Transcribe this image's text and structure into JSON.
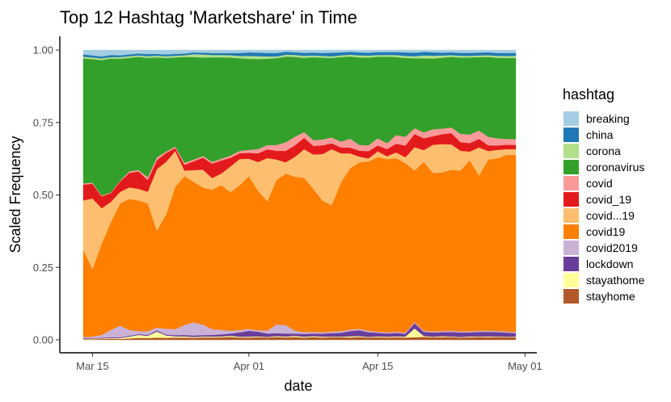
{
  "chart_data": {
    "type": "area",
    "stacked": true,
    "normalized": true,
    "title": "Top 12 Hashtag 'Marketshare' in Time",
    "xlabel": "date",
    "ylabel": "Scaled Frequency",
    "x_ticks": [
      "Mar 15",
      "Apr 01",
      "Apr 15",
      "May 01"
    ],
    "y_ticks": [
      "0.00",
      "0.25",
      "0.50",
      "0.75",
      "1.00"
    ],
    "xlim": [
      "2020-03-14",
      "2020-04-30"
    ],
    "ylim": [
      0,
      1
    ],
    "grid": false,
    "legend_title": "hashtag",
    "legend_position": "right",
    "x": [
      "2020-03-14",
      "2020-03-15",
      "2020-03-16",
      "2020-03-17",
      "2020-03-18",
      "2020-03-19",
      "2020-03-20",
      "2020-03-21",
      "2020-03-22",
      "2020-03-23",
      "2020-03-24",
      "2020-03-25",
      "2020-03-26",
      "2020-03-27",
      "2020-03-28",
      "2020-03-29",
      "2020-03-30",
      "2020-03-31",
      "2020-04-01",
      "2020-04-02",
      "2020-04-03",
      "2020-04-04",
      "2020-04-05",
      "2020-04-06",
      "2020-04-07",
      "2020-04-08",
      "2020-04-09",
      "2020-04-10",
      "2020-04-11",
      "2020-04-12",
      "2020-04-13",
      "2020-04-14",
      "2020-04-15",
      "2020-04-16",
      "2020-04-17",
      "2020-04-18",
      "2020-04-19",
      "2020-04-20",
      "2020-04-21",
      "2020-04-22",
      "2020-04-23",
      "2020-04-24",
      "2020-04-25",
      "2020-04-26",
      "2020-04-27",
      "2020-04-28",
      "2020-04-29",
      "2020-04-30"
    ],
    "series": [
      {
        "name": "stayhome",
        "color": "#B15928",
        "values": [
          0.002,
          0.002,
          0.003,
          0.004,
          0.003,
          0.005,
          0.007,
          0.006,
          0.008,
          0.007,
          0.008,
          0.008,
          0.007,
          0.008,
          0.008,
          0.009,
          0.01,
          0.008,
          0.008,
          0.009,
          0.008,
          0.01,
          0.009,
          0.01,
          0.008,
          0.01,
          0.008,
          0.009,
          0.009,
          0.008,
          0.01,
          0.008,
          0.009,
          0.008,
          0.009,
          0.008,
          0.009,
          0.01,
          0.009,
          0.01,
          0.01,
          0.008,
          0.009,
          0.01,
          0.009,
          0.01,
          0.009,
          0.009
        ]
      },
      {
        "name": "stayathome",
        "color": "#FFFF99",
        "values": [
          0.002,
          0.002,
          0.002,
          0.002,
          0.003,
          0.006,
          0.01,
          0.008,
          0.02,
          0.008,
          0.004,
          0.004,
          0.003,
          0.003,
          0.003,
          0.003,
          0.004,
          0.003,
          0.003,
          0.003,
          0.002,
          0.003,
          0.003,
          0.004,
          0.003,
          0.003,
          0.003,
          0.002,
          0.002,
          0.004,
          0.003,
          0.002,
          0.003,
          0.003,
          0.003,
          0.003,
          0.03,
          0.003,
          0.002,
          0.003,
          0.002,
          0.002,
          0.003,
          0.002,
          0.003,
          0.002,
          0.002,
          0.002
        ]
      },
      {
        "name": "lockdown",
        "color": "#6A3D9A",
        "values": [
          0.002,
          0.002,
          0.002,
          0.003,
          0.003,
          0.003,
          0.003,
          0.003,
          0.004,
          0.003,
          0.004,
          0.005,
          0.005,
          0.005,
          0.006,
          0.007,
          0.008,
          0.015,
          0.02,
          0.016,
          0.012,
          0.01,
          0.01,
          0.008,
          0.01,
          0.009,
          0.01,
          0.012,
          0.013,
          0.018,
          0.02,
          0.016,
          0.012,
          0.011,
          0.012,
          0.01,
          0.018,
          0.014,
          0.015,
          0.014,
          0.016,
          0.016,
          0.014,
          0.016,
          0.016,
          0.015,
          0.014,
          0.012
        ]
      },
      {
        "name": "covid2019",
        "color": "#CAB2D6",
        "values": [
          0.004,
          0.005,
          0.01,
          0.025,
          0.04,
          0.02,
          0.01,
          0.012,
          0.01,
          0.02,
          0.02,
          0.035,
          0.045,
          0.035,
          0.02,
          0.015,
          0.01,
          0.008,
          0.006,
          0.005,
          0.01,
          0.03,
          0.03,
          0.01,
          0.006,
          0.006,
          0.005,
          0.005,
          0.006,
          0.005,
          0.005,
          0.005,
          0.004,
          0.004,
          0.004,
          0.004,
          0.004,
          0.004,
          0.004,
          0.004,
          0.004,
          0.004,
          0.004,
          0.004,
          0.004,
          0.004,
          0.004,
          0.004
        ]
      },
      {
        "name": "covid19",
        "color": "#FF7F00",
        "values": [
          0.3,
          0.23,
          0.31,
          0.37,
          0.42,
          0.45,
          0.45,
          0.44,
          0.33,
          0.39,
          0.48,
          0.52,
          0.48,
          0.46,
          0.48,
          0.5,
          0.48,
          0.5,
          0.52,
          0.48,
          0.45,
          0.5,
          0.53,
          0.54,
          0.54,
          0.5,
          0.45,
          0.43,
          0.51,
          0.55,
          0.57,
          0.58,
          0.6,
          0.6,
          0.6,
          0.58,
          0.52,
          0.57,
          0.56,
          0.56,
          0.57,
          0.57,
          0.6,
          0.55,
          0.6,
          0.6,
          0.61,
          0.61
        ]
      },
      {
        "name": "covid...19",
        "color": "#FDBF6F",
        "values": [
          0.17,
          0.24,
          0.12,
          0.07,
          0.04,
          0.04,
          0.04,
          0.04,
          0.21,
          0.18,
          0.12,
          0.02,
          0.04,
          0.06,
          0.04,
          0.04,
          0.09,
          0.09,
          0.06,
          0.1,
          0.15,
          0.07,
          0.04,
          0.07,
          0.1,
          0.12,
          0.16,
          0.19,
          0.1,
          0.05,
          0.02,
          0.01,
          0.02,
          0.01,
          0.02,
          0.02,
          0.08,
          0.04,
          0.1,
          0.1,
          0.09,
          0.07,
          0.03,
          0.1,
          0.03,
          0.03,
          0.02,
          0.02
        ]
      },
      {
        "name": "covid_19",
        "color": "#E31A1C",
        "values": [
          0.055,
          0.05,
          0.04,
          0.03,
          0.035,
          0.05,
          0.06,
          0.04,
          0.03,
          0.03,
          0.01,
          0.02,
          0.03,
          0.04,
          0.05,
          0.045,
          0.03,
          0.02,
          0.02,
          0.03,
          0.03,
          0.03,
          0.04,
          0.04,
          0.04,
          0.03,
          0.03,
          0.02,
          0.02,
          0.02,
          0.02,
          0.025,
          0.02,
          0.025,
          0.03,
          0.04,
          0.045,
          0.04,
          0.03,
          0.035,
          0.04,
          0.03,
          0.03,
          0.03,
          0.02,
          0.015,
          0.015,
          0.015
        ]
      },
      {
        "name": "covid",
        "color": "#FB9A99",
        "values": [
          0.004,
          0.004,
          0.003,
          0.003,
          0.003,
          0.005,
          0.005,
          0.01,
          0.01,
          0.005,
          0.005,
          0.007,
          0.006,
          0.006,
          0.006,
          0.006,
          0.008,
          0.008,
          0.01,
          0.015,
          0.015,
          0.02,
          0.03,
          0.03,
          0.02,
          0.02,
          0.02,
          0.02,
          0.02,
          0.03,
          0.02,
          0.02,
          0.025,
          0.02,
          0.03,
          0.03,
          0.02,
          0.02,
          0.025,
          0.02,
          0.02,
          0.03,
          0.03,
          0.03,
          0.03,
          0.025,
          0.02,
          0.02
        ]
      },
      {
        "name": "coronavirus",
        "color": "#33A02C",
        "values": [
          0.43,
          0.42,
          0.46,
          0.46,
          0.42,
          0.39,
          0.39,
          0.41,
          0.34,
          0.32,
          0.3,
          0.37,
          0.35,
          0.33,
          0.36,
          0.35,
          0.34,
          0.32,
          0.31,
          0.31,
          0.3,
          0.3,
          0.3,
          0.28,
          0.26,
          0.29,
          0.28,
          0.27,
          0.29,
          0.28,
          0.3,
          0.3,
          0.28,
          0.3,
          0.27,
          0.27,
          0.24,
          0.25,
          0.25,
          0.25,
          0.25,
          0.27,
          0.27,
          0.26,
          0.28,
          0.28,
          0.28,
          0.28
        ]
      },
      {
        "name": "corona",
        "color": "#B2DF8A",
        "values": [
          0.006,
          0.006,
          0.006,
          0.005,
          0.006,
          0.006,
          0.005,
          0.006,
          0.006,
          0.006,
          0.006,
          0.006,
          0.01,
          0.01,
          0.008,
          0.008,
          0.008,
          0.008,
          0.01,
          0.01,
          0.008,
          0.006,
          0.007,
          0.007,
          0.007,
          0.006,
          0.006,
          0.006,
          0.006,
          0.006,
          0.007,
          0.007,
          0.006,
          0.006,
          0.007,
          0.007,
          0.007,
          0.01,
          0.01,
          0.008,
          0.006,
          0.007,
          0.006,
          0.006,
          0.006,
          0.007,
          0.007,
          0.007
        ]
      },
      {
        "name": "china",
        "color": "#1F78B4",
        "values": [
          0.008,
          0.007,
          0.006,
          0.007,
          0.006,
          0.006,
          0.006,
          0.007,
          0.006,
          0.006,
          0.006,
          0.006,
          0.006,
          0.006,
          0.007,
          0.007,
          0.008,
          0.01,
          0.012,
          0.012,
          0.012,
          0.012,
          0.01,
          0.009,
          0.01,
          0.01,
          0.01,
          0.012,
          0.01,
          0.01,
          0.01,
          0.01,
          0.01,
          0.01,
          0.01,
          0.012,
          0.012,
          0.012,
          0.012,
          0.01,
          0.01,
          0.01,
          0.01,
          0.01,
          0.01,
          0.01,
          0.01,
          0.01
        ]
      },
      {
        "name": "breaking",
        "color": "#A6CEE3",
        "values": [
          0.015,
          0.018,
          0.022,
          0.017,
          0.018,
          0.015,
          0.012,
          0.014,
          0.013,
          0.015,
          0.013,
          0.012,
          0.008,
          0.009,
          0.01,
          0.01,
          0.01,
          0.01,
          0.008,
          0.009,
          0.01,
          0.01,
          0.006,
          0.008,
          0.01,
          0.009,
          0.01,
          0.009,
          0.008,
          0.006,
          0.008,
          0.009,
          0.007,
          0.007,
          0.007,
          0.008,
          0.009,
          0.006,
          0.008,
          0.009,
          0.008,
          0.01,
          0.01,
          0.009,
          0.008,
          0.01,
          0.01,
          0.01
        ]
      }
    ]
  }
}
